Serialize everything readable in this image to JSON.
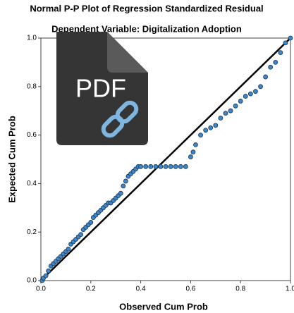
{
  "chart_data": {
    "type": "scatter",
    "title": "Normal P-P Plot of Regression Standardized Residual",
    "subtitle": "Dependent Variable: Digitalization Adoption",
    "xlabel": "Observed Cum Prob",
    "ylabel": "Expected Cum Prob",
    "xlim": [
      0,
      1
    ],
    "ylim": [
      0,
      1
    ],
    "xticks": [
      {
        "value": 0,
        "label": "0.0"
      },
      0.2,
      0.4,
      0.6,
      0.8,
      {
        "value": 1,
        "label": "1.0"
      }
    ],
    "yticks": [
      {
        "value": 0,
        "label": "0.0"
      },
      0.2,
      0.4,
      0.6,
      0.8,
      {
        "value": 1,
        "label": "1.0"
      }
    ],
    "color": "#3d85c6",
    "reference_line": true,
    "x": [
      0.005,
      0.01,
      0.02,
      0.03,
      0.04,
      0.05,
      0.06,
      0.07,
      0.08,
      0.09,
      0.1,
      0.11,
      0.12,
      0.13,
      0.14,
      0.15,
      0.16,
      0.17,
      0.18,
      0.19,
      0.2,
      0.21,
      0.22,
      0.23,
      0.24,
      0.25,
      0.26,
      0.27,
      0.28,
      0.29,
      0.3,
      0.31,
      0.32,
      0.33,
      0.34,
      0.35,
      0.36,
      0.37,
      0.38,
      0.39,
      0.4,
      0.42,
      0.44,
      0.46,
      0.48,
      0.5,
      0.52,
      0.54,
      0.56,
      0.58,
      0.6,
      0.61,
      0.62,
      0.64,
      0.66,
      0.68,
      0.7,
      0.72,
      0.74,
      0.76,
      0.78,
      0.8,
      0.82,
      0.84,
      0.86,
      0.88,
      0.9,
      0.92,
      0.94,
      0.96,
      0.98,
      1.0
    ],
    "values": [
      0.0,
      0.01,
      0.02,
      0.04,
      0.06,
      0.07,
      0.08,
      0.09,
      0.1,
      0.11,
      0.12,
      0.13,
      0.15,
      0.16,
      0.17,
      0.18,
      0.19,
      0.21,
      0.22,
      0.23,
      0.24,
      0.26,
      0.27,
      0.28,
      0.29,
      0.3,
      0.31,
      0.32,
      0.32,
      0.33,
      0.34,
      0.35,
      0.36,
      0.39,
      0.41,
      0.43,
      0.44,
      0.45,
      0.46,
      0.47,
      0.47,
      0.47,
      0.47,
      0.47,
      0.47,
      0.47,
      0.47,
      0.47,
      0.47,
      0.47,
      0.51,
      0.53,
      0.56,
      0.6,
      0.62,
      0.63,
      0.64,
      0.67,
      0.69,
      0.7,
      0.72,
      0.74,
      0.76,
      0.77,
      0.78,
      0.8,
      0.84,
      0.88,
      0.9,
      0.94,
      0.98,
      1.0
    ]
  },
  "icon": {
    "label": "PDF"
  }
}
